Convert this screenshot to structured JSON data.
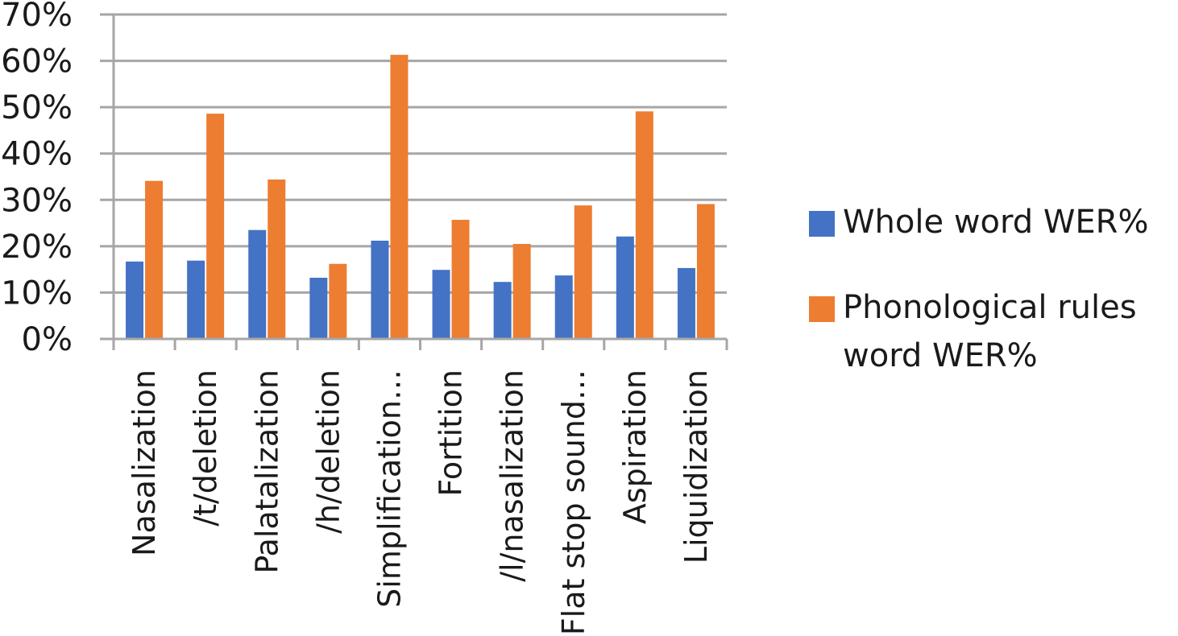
{
  "chart_data": {
    "type": "bar",
    "categories": [
      "Nasalization",
      "/t/deletion",
      "Palatalization",
      "/h/deletion",
      "Simplification…",
      "Fortition",
      "/l/nasalization",
      "Flat stop sound…",
      "Aspiration",
      "Liquidization"
    ],
    "series": [
      {
        "name": "Whole word WER%",
        "color": "#4472c4",
        "values": [
          16.7,
          16.9,
          23.5,
          13.2,
          21.2,
          14.9,
          12.3,
          13.7,
          22.1,
          15.3
        ]
      },
      {
        "name": "Phonological rules word WER%",
        "color": "#ed7d31",
        "values": [
          34.1,
          48.6,
          34.4,
          16.2,
          61.3,
          25.7,
          20.5,
          28.8,
          49.1,
          29.1
        ]
      }
    ],
    "yticks": [
      "0%",
      "10%",
      "20%",
      "30%",
      "40%",
      "50%",
      "60%",
      "70%"
    ],
    "ylim": [
      0,
      70
    ],
    "grid": true,
    "legend_position": "right"
  }
}
